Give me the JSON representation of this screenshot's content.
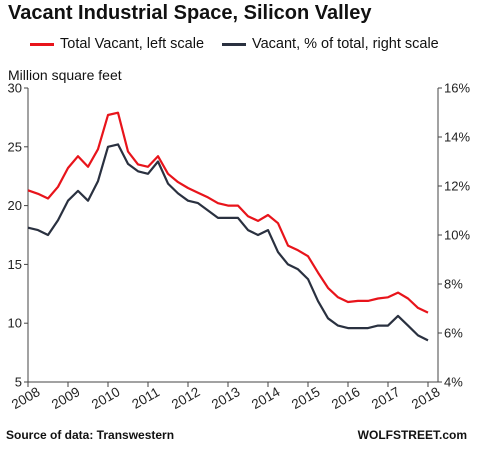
{
  "chart_data": {
    "type": "line",
    "title": "Vacant Industrial Space, Silicon Valley",
    "ylabel": "Million square feet",
    "ylim": [
      5,
      30
    ],
    "ylim_right": [
      4,
      16
    ],
    "yticks_left": [
      "5",
      "10",
      "15",
      "20",
      "25",
      "30"
    ],
    "yticks_right": [
      "4%",
      "6%",
      "8%",
      "10%",
      "12%",
      "14%",
      "16%"
    ],
    "x_tick_labels": [
      "2008",
      "2009",
      "2010",
      "2011",
      "2012",
      "2013",
      "2014",
      "2015",
      "2016",
      "2017",
      "2018"
    ],
    "xlim": [
      2008.0,
      2018.25
    ],
    "grid": false,
    "legend_placement": "top",
    "series": [
      {
        "name": "Total Vacant, left scale",
        "axis": "left",
        "color": "#e8141b",
        "x": [
          2008.0,
          2008.25,
          2008.5,
          2008.75,
          2009.0,
          2009.25,
          2009.5,
          2009.75,
          2010.0,
          2010.25,
          2010.5,
          2010.75,
          2011.0,
          2011.25,
          2011.5,
          2011.75,
          2012.0,
          2012.25,
          2012.5,
          2012.75,
          2013.0,
          2013.25,
          2013.5,
          2013.75,
          2014.0,
          2014.25,
          2014.5,
          2014.75,
          2015.0,
          2015.25,
          2015.5,
          2015.75,
          2016.0,
          2016.25,
          2016.5,
          2016.75,
          2017.0,
          2017.25,
          2017.5,
          2017.75,
          2018.0
        ],
        "values": [
          21.3,
          21.0,
          20.6,
          21.6,
          23.2,
          24.2,
          23.3,
          24.8,
          27.7,
          27.9,
          24.6,
          23.5,
          23.3,
          24.2,
          22.7,
          22.0,
          21.5,
          21.1,
          20.7,
          20.2,
          20.0,
          20.0,
          19.1,
          18.7,
          19.2,
          18.5,
          16.6,
          16.2,
          15.7,
          14.3,
          13.0,
          12.2,
          11.8,
          11.9,
          11.9,
          12.1,
          12.2,
          12.6,
          12.1,
          11.3,
          10.9
        ]
      },
      {
        "name": "Vacant, % of total, right scale",
        "axis": "right",
        "color": "#2a3140",
        "x": [
          2008.0,
          2008.25,
          2008.5,
          2008.75,
          2009.0,
          2009.25,
          2009.5,
          2009.75,
          2010.0,
          2010.25,
          2010.5,
          2010.75,
          2011.0,
          2011.25,
          2011.5,
          2011.75,
          2012.0,
          2012.25,
          2012.5,
          2012.75,
          2013.0,
          2013.25,
          2013.5,
          2013.75,
          2014.0,
          2014.25,
          2014.5,
          2014.75,
          2015.0,
          2015.25,
          2015.5,
          2015.75,
          2016.0,
          2016.25,
          2016.5,
          2016.75,
          2017.0,
          2017.25,
          2017.5,
          2017.75,
          2018.0
        ],
        "values": [
          10.3,
          10.2,
          10.0,
          10.6,
          11.4,
          11.8,
          11.4,
          12.2,
          13.6,
          13.7,
          12.9,
          12.6,
          12.5,
          13.0,
          12.1,
          11.7,
          11.4,
          11.3,
          11.0,
          10.7,
          10.7,
          10.7,
          10.2,
          10.0,
          10.2,
          9.3,
          8.8,
          8.6,
          8.2,
          7.3,
          6.6,
          6.3,
          6.2,
          6.2,
          6.2,
          6.3,
          6.3,
          6.7,
          6.3,
          5.9,
          5.7
        ]
      }
    ]
  },
  "footer": {
    "source": "Source of data:  Transwestern",
    "brand": "WOLFSTREET.com"
  }
}
